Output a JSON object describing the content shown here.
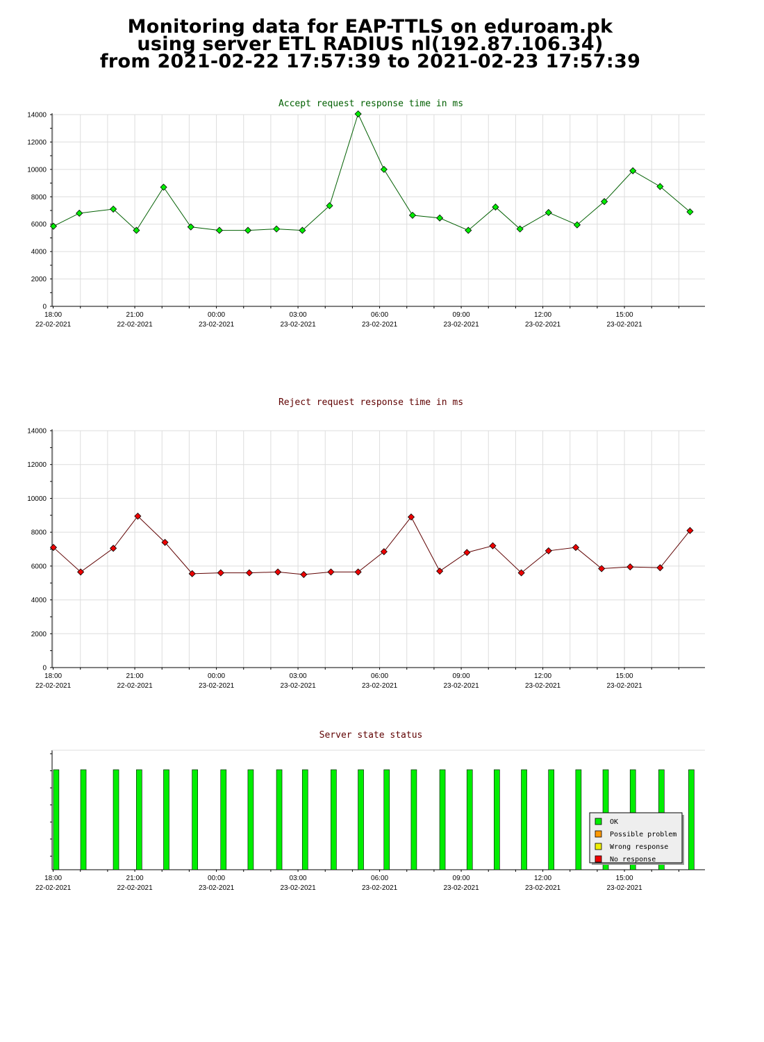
{
  "page": {
    "title_lines": [
      "Monitoring data for EAP-TTLS on eduroam.pk",
      "using server ETL RADIUS nl(192.87.106.34)",
      "from 2021-02-22 17:57:39 to 2021-02-23 17:57:39"
    ]
  },
  "x_axis": {
    "tick_times": [
      "18:00",
      "21:00",
      "00:00",
      "03:00",
      "06:00",
      "09:00",
      "12:00",
      "15:00"
    ],
    "tick_dates": [
      "22-02-2021",
      "22-02-2021",
      "23-02-2021",
      "23-02-2021",
      "23-02-2021",
      "23-02-2021",
      "23-02-2021",
      "23-02-2021"
    ]
  },
  "chart_data": [
    {
      "type": "line",
      "title": "Accept request response time in ms",
      "title_color": "#005f00",
      "line_color": "#005f00",
      "marker_color": "#00ee00",
      "ylim": [
        0,
        14000
      ],
      "y_ticks": [
        0,
        2000,
        4000,
        6000,
        8000,
        10000,
        12000,
        14000
      ],
      "grid": true,
      "x_hours": [
        0.05,
        1.0,
        2.25,
        3.1,
        4.1,
        5.1,
        6.15,
        7.2,
        8.25,
        9.2,
        10.2,
        11.25,
        12.2,
        13.25,
        14.25,
        15.3,
        16.3,
        17.2,
        18.25,
        19.3,
        20.3,
        21.35,
        22.35,
        23.45
      ],
      "values": [
        5850,
        6800,
        7100,
        5550,
        8700,
        5800,
        5550,
        5550,
        5650,
        5550,
        7350,
        14050,
        10000,
        6650,
        6450,
        5550,
        7250,
        5650,
        6850,
        5950,
        7650,
        9900,
        8750,
        6900
      ]
    },
    {
      "type": "line",
      "title": "Reject request response time in ms",
      "title_color": "#5f0000",
      "line_color": "#5f0000",
      "marker_color": "#ee0000",
      "ylim": [
        0,
        14000
      ],
      "y_ticks": [
        0,
        2000,
        4000,
        6000,
        8000,
        10000,
        12000,
        14000
      ],
      "grid": true,
      "x_hours": [
        0.05,
        1.05,
        2.25,
        3.15,
        4.15,
        5.15,
        6.2,
        7.25,
        8.3,
        9.25,
        10.25,
        11.25,
        12.2,
        13.2,
        14.25,
        15.25,
        16.2,
        17.25,
        18.25,
        19.25,
        20.2,
        21.25,
        22.35,
        23.45
      ],
      "values": [
        7100,
        5650,
        7050,
        8950,
        7400,
        5550,
        5600,
        5600,
        5650,
        5500,
        5650,
        5650,
        6850,
        8900,
        5700,
        6800,
        7200,
        5600,
        6900,
        7100,
        5850,
        5950,
        5900,
        8100
      ]
    },
    {
      "type": "bar",
      "title": "Server state status",
      "title_color": "#5f0000",
      "x_hours": [
        0.15,
        1.15,
        2.35,
        3.2,
        4.2,
        5.25,
        6.3,
        7.3,
        8.35,
        9.3,
        10.35,
        11.35,
        12.3,
        13.3,
        14.35,
        15.35,
        16.35,
        17.35,
        18.35,
        19.35,
        20.35,
        21.35,
        22.4,
        23.5
      ],
      "values": [
        "OK",
        "OK",
        "OK",
        "OK",
        "OK",
        "OK",
        "OK",
        "OK",
        "OK",
        "OK",
        "OK",
        "OK",
        "OK",
        "OK",
        "OK",
        "OK",
        "OK",
        "OK",
        "OK",
        "OK",
        "OK",
        "OK",
        "OK",
        "OK"
      ],
      "legend": [
        {
          "label": "OK",
          "color": "#00ee00"
        },
        {
          "label": "Possible problem",
          "color": "#ff9900"
        },
        {
          "label": "Wrong response",
          "color": "#eeee00"
        },
        {
          "label": "No response",
          "color": "#ee0000"
        }
      ],
      "legend_position": "bottom-right",
      "bar_color": "#00ee00"
    }
  ]
}
